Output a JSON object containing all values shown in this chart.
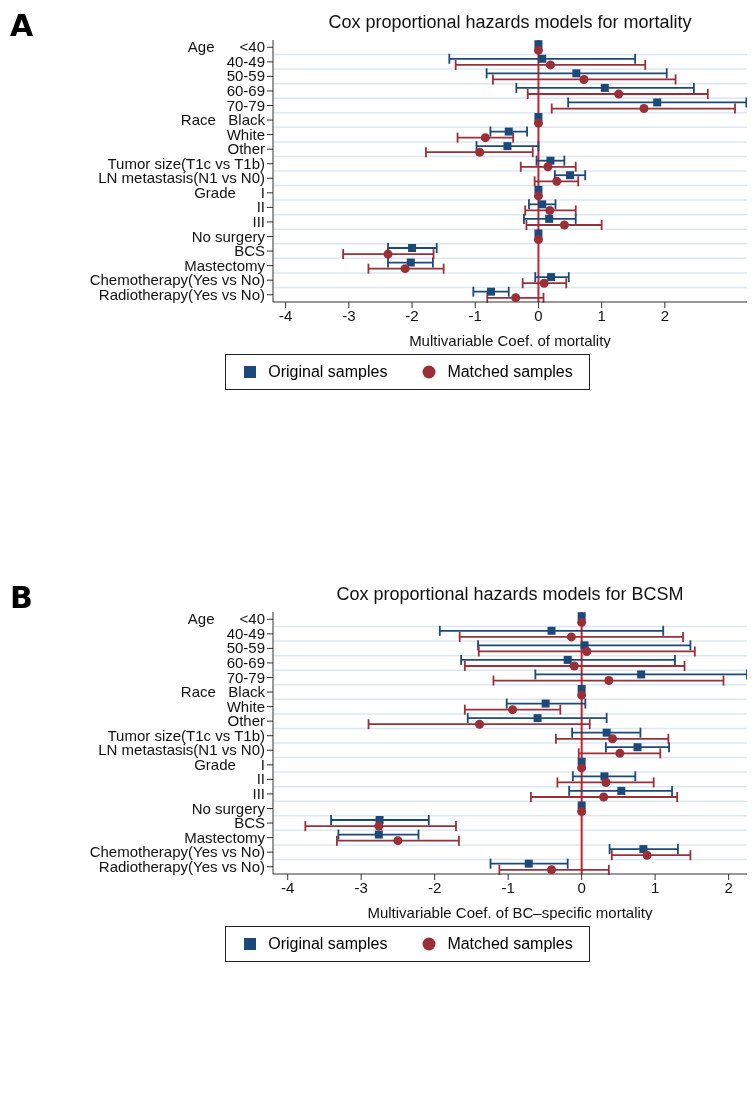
{
  "chart_data": [
    {
      "type": "scatter",
      "orientation": "horizontal",
      "title": "Cox proportional hazards models for mortality",
      "xlabel": "Multivariable Coef. of mortality",
      "annotations": [
        "A"
      ],
      "categories": [
        "Age      <40",
        "40-49",
        "50-59",
        "60-69",
        "70-79",
        "Race   Black",
        "White",
        "Other",
        "Tumor size(T1c vs T1b)",
        "LN metastasis(N1 vs N0)",
        "Grade      I",
        "II",
        "III",
        "No surgery",
        "BCS",
        "Mastectomy",
        "Chemotherapy(Yes vs No)",
        "Radiotherapy(Yes vs No)"
      ],
      "series": [
        {
          "name": "Original samples",
          "color": "#1b4a7a",
          "marker": "square",
          "values": [
            0,
            0.06,
            0.6,
            1.05,
            1.88,
            0,
            -0.47,
            -0.49,
            0.19,
            0.5,
            0,
            0.06,
            0.17,
            0,
            -2.0,
            -2.02,
            0.2,
            -0.75
          ],
          "errors": [
            null,
            [
              -1.41,
              1.53
            ],
            [
              -0.82,
              2.03
            ],
            [
              -0.35,
              2.46
            ],
            [
              0.47,
              3.29
            ],
            null,
            [
              -0.76,
              -0.18
            ],
            [
              -0.98,
              0.0
            ],
            [
              -0.03,
              0.41
            ],
            [
              0.26,
              0.74
            ],
            null,
            [
              -0.15,
              0.27
            ],
            [
              -0.23,
              0.59
            ],
            null,
            [
              -2.38,
              -1.61
            ],
            [
              -2.38,
              -1.67
            ],
            [
              -0.05,
              0.48
            ],
            [
              -1.03,
              -0.47
            ]
          ]
        },
        {
          "name": "Matched samples",
          "color": "#9a2f38",
          "marker": "circle",
          "values": [
            0,
            0.19,
            0.72,
            1.27,
            1.67,
            0,
            -0.84,
            -0.93,
            0.15,
            0.29,
            0,
            0.18,
            0.41,
            0,
            -2.38,
            -2.11,
            0.09,
            -0.36
          ],
          "errors": [
            null,
            [
              -1.31,
              1.69
            ],
            [
              -0.72,
              2.17
            ],
            [
              -0.17,
              2.68
            ],
            [
              0.21,
              3.11
            ],
            null,
            [
              -1.28,
              -0.4
            ],
            [
              -1.78,
              -0.09
            ],
            [
              -0.28,
              0.59
            ],
            [
              -0.06,
              0.63
            ],
            null,
            [
              -0.21,
              0.59
            ],
            [
              -0.19,
              1.0
            ],
            null,
            [
              -3.09,
              -1.66
            ],
            [
              -2.69,
              -1.5
            ],
            [
              -0.25,
              0.44
            ],
            [
              -0.81,
              0.08
            ]
          ]
        }
      ],
      "xlim": [
        -4.2,
        3.3
      ],
      "xticks": [
        -4,
        -3,
        -2,
        -1,
        0,
        1,
        2
      ],
      "grid": "y",
      "legend": "bottom",
      "ref_lines": [
        {
          "axis": "x",
          "value": 0,
          "color": "#c8202e"
        }
      ]
    },
    {
      "type": "scatter",
      "orientation": "horizontal",
      "title": "Cox proportional hazards models for BCSM",
      "xlabel": "Multivariable Coef. of BC–specific mortality",
      "annotations": [
        "B"
      ],
      "categories": [
        "Age      <40",
        "40-49",
        "50-59",
        "60-69",
        "70-79",
        "Race   Black",
        "White",
        "Other",
        "Tumor size(T1c vs T1b)",
        "LN metastasis(N1 vs N0)",
        "Grade      I",
        "II",
        "III",
        "No surgery",
        "BCS",
        "Mastectomy",
        "Chemotherapy(Yes vs No)",
        "Radiotherapy(Yes vs No)"
      ],
      "series": [
        {
          "name": "Original samples",
          "color": "#1b4a7a",
          "marker": "square",
          "values": [
            0,
            -0.41,
            0.04,
            -0.19,
            0.81,
            0,
            -0.49,
            -0.6,
            0.34,
            0.76,
            0,
            0.31,
            0.54,
            0,
            -2.75,
            -2.76,
            0.84,
            -0.72
          ],
          "errors": [
            null,
            [
              -1.93,
              1.11
            ],
            [
              -1.41,
              1.48
            ],
            [
              -1.64,
              1.27
            ],
            [
              -0.63,
              2.25
            ],
            null,
            [
              -1.02,
              0.05
            ],
            [
              -1.55,
              0.34
            ],
            [
              -0.13,
              0.8
            ],
            [
              0.33,
              1.19
            ],
            null,
            [
              -0.12,
              0.73
            ],
            [
              -0.17,
              1.23
            ],
            null,
            [
              -3.41,
              -2.08
            ],
            [
              -3.31,
              -2.22
            ],
            [
              0.38,
              1.31
            ],
            [
              -1.24,
              -0.19
            ]
          ]
        },
        {
          "name": "Matched samples",
          "color": "#9a2f38",
          "marker": "circle",
          "values": [
            0,
            -0.14,
            0.07,
            -0.1,
            0.37,
            0,
            -0.94,
            -1.39,
            0.42,
            0.52,
            0,
            0.33,
            0.3,
            0,
            -2.76,
            -2.5,
            0.89,
            -0.41
          ],
          "errors": [
            null,
            [
              -1.66,
              1.38
            ],
            [
              -1.4,
              1.54
            ],
            [
              -1.59,
              1.4
            ],
            [
              -1.2,
              1.93
            ],
            null,
            [
              -1.59,
              -0.29
            ],
            [
              -2.9,
              0.11
            ],
            [
              -0.35,
              1.18
            ],
            [
              -0.04,
              1.07
            ],
            null,
            [
              -0.33,
              0.98
            ],
            [
              -0.69,
              1.3
            ],
            null,
            [
              -3.76,
              -1.71
            ],
            [
              -3.33,
              -1.67
            ],
            [
              0.41,
              1.48
            ],
            [
              -1.12,
              0.37
            ]
          ]
        }
      ],
      "xlim": [
        -4.2,
        2.25
      ],
      "xticks": [
        -4,
        -3,
        -2,
        -1,
        0,
        1,
        2
      ],
      "grid": "y",
      "legend": "bottom",
      "ref_lines": [
        {
          "axis": "x",
          "value": 0,
          "color": "#c8202e"
        }
      ]
    }
  ]
}
